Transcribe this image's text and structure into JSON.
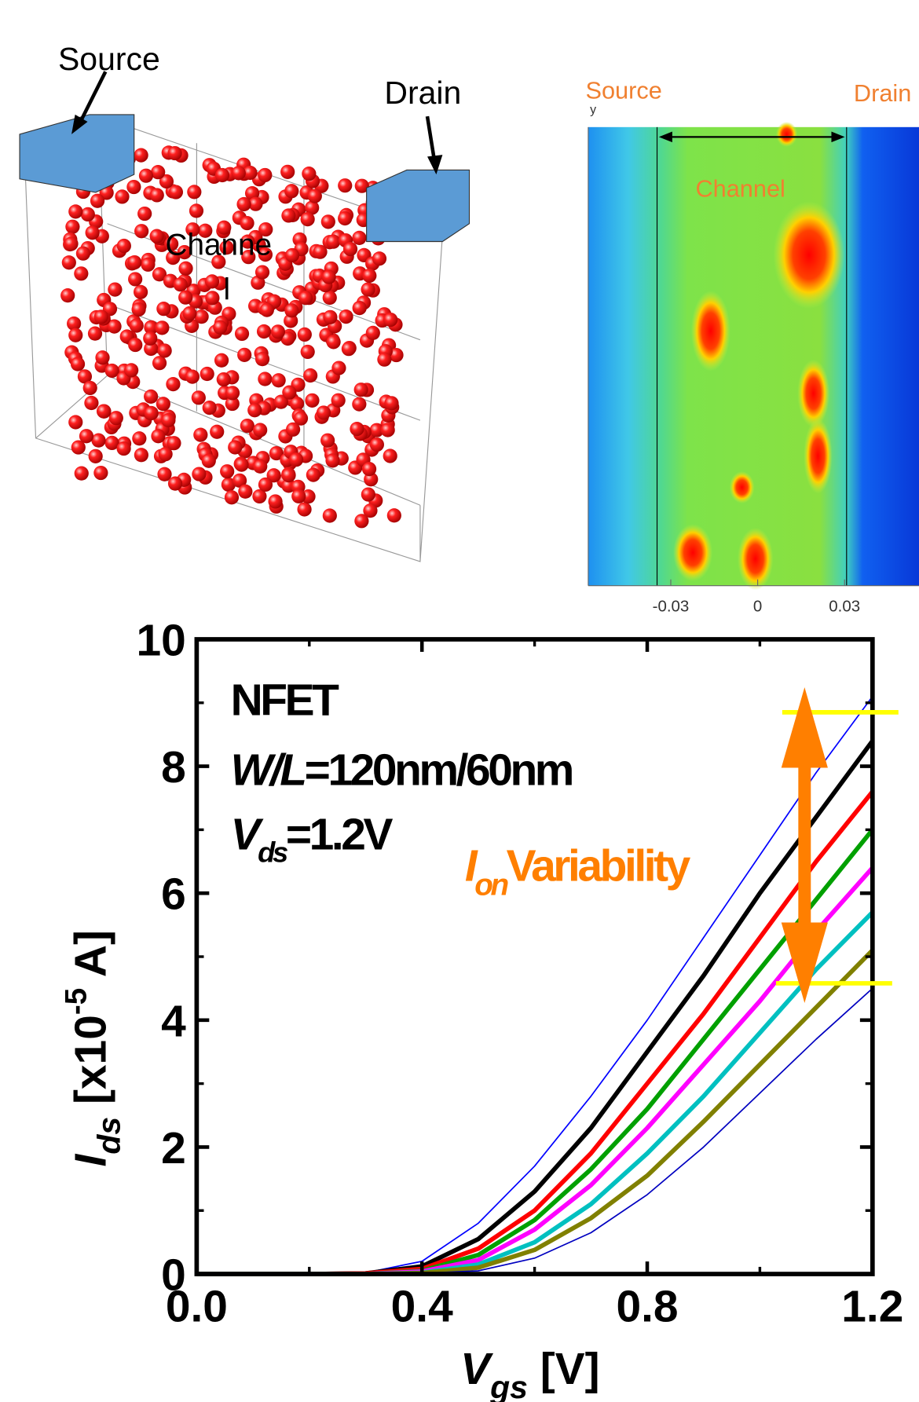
{
  "illustration": {
    "source": "Source",
    "drain": "Drain",
    "channel": [
      "Channe",
      "l"
    ]
  },
  "chart_data": [
    {
      "type": "heatmap",
      "axis_label": "y",
      "source": "Source",
      "drain": "Drain",
      "channel": "Channel",
      "xlim": [
        -0.0585,
        0.0557
      ],
      "xticks": [
        -0.03,
        0,
        0.03
      ]
    },
    {
      "type": "line",
      "annotations": {
        "device": "NFET",
        "geometry": {
          "symbol": "W/L",
          "text": "=120nm/60nm"
        },
        "bias": {
          "symbol": "V",
          "sub": "ds",
          "text": "=1.2V"
        },
        "variability": {
          "symbol": "I",
          "sub": "on",
          "text": "Variability"
        }
      },
      "xlabel": {
        "symbol": "V",
        "sub": "gs",
        "unit": " [V]"
      },
      "ylabel": {
        "symbol": "I",
        "sub": "ds",
        "pre": " [x10",
        "sup": "-5",
        "unit": " A]"
      },
      "x": [
        0,
        0.1,
        0.2,
        0.3,
        0.4,
        0.5,
        0.6,
        0.7,
        0.8,
        0.9,
        1.0,
        1.1,
        1.2
      ],
      "series": [
        {
          "color": "#0000ff",
          "values": [
            0,
            0,
            0,
            0.02,
            0.2,
            0.8,
            1.7,
            2.8,
            4.0,
            5.3,
            6.6,
            7.9,
            9.1
          ]
        },
        {
          "color": "#000000",
          "values": [
            0,
            0,
            0,
            0.01,
            0.12,
            0.55,
            1.3,
            2.3,
            3.5,
            4.7,
            6.0,
            7.2,
            8.4
          ]
        },
        {
          "color": "#ff0000",
          "values": [
            0,
            0,
            0,
            0.01,
            0.08,
            0.4,
            1.0,
            1.9,
            3.0,
            4.1,
            5.3,
            6.5,
            7.6
          ]
        },
        {
          "color": "#00a000",
          "values": [
            0,
            0,
            0,
            0,
            0.05,
            0.3,
            0.85,
            1.65,
            2.6,
            3.7,
            4.8,
            5.9,
            7.0
          ]
        },
        {
          "color": "#ff00ff",
          "values": [
            0,
            0,
            0,
            0,
            0.04,
            0.22,
            0.7,
            1.4,
            2.3,
            3.3,
            4.3,
            5.4,
            6.4
          ]
        },
        {
          "color": "#00c0c0",
          "values": [
            0,
            0,
            0,
            0,
            0.02,
            0.15,
            0.5,
            1.1,
            1.9,
            2.8,
            3.8,
            4.8,
            5.7
          ]
        },
        {
          "color": "#808000",
          "values": [
            0,
            0,
            0,
            0,
            0.015,
            0.1,
            0.38,
            0.88,
            1.55,
            2.4,
            3.3,
            4.2,
            5.1
          ]
        },
        {
          "color": "#0000c0",
          "values": [
            0,
            0,
            0,
            0,
            0.01,
            0.05,
            0.25,
            0.65,
            1.25,
            2.0,
            2.85,
            3.7,
            4.5
          ]
        }
      ],
      "xlim": [
        0,
        1.2
      ],
      "ylim": [
        0,
        10
      ],
      "xticks": [
        {
          "value": 0,
          "label": "0.0"
        },
        0.4,
        0.8,
        1.2
      ],
      "yticks": [
        0,
        2,
        4,
        6,
        8,
        10
      ],
      "ion_range": [
        8.85,
        4.58
      ],
      "ion_range_color": "#ffff00",
      "annotation_color": "#ff7f00"
    }
  ]
}
